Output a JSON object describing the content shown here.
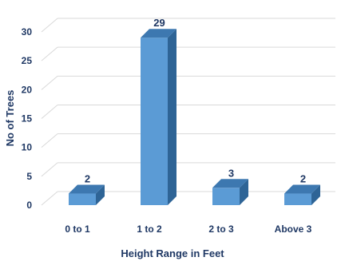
{
  "chart_data": {
    "type": "bar",
    "categories": [
      "0 to 1",
      "1 to 2",
      "2 to 3",
      "Above 3"
    ],
    "values": [
      2,
      29,
      3,
      2
    ],
    "data_labels": [
      "2",
      "29",
      "3",
      "2"
    ],
    "title": "",
    "xlabel": "Height Range in Feet",
    "ylabel": "No of Trees",
    "ylim": [
      0,
      30
    ],
    "yticks": [
      "0",
      "5",
      "10",
      "15",
      "20",
      "25",
      "30"
    ],
    "grid": true,
    "legend": "none",
    "style": "3d-column",
    "colors": {
      "front": "#5b9bd5",
      "side": "#2e6496",
      "top": "#3d78b0"
    }
  }
}
